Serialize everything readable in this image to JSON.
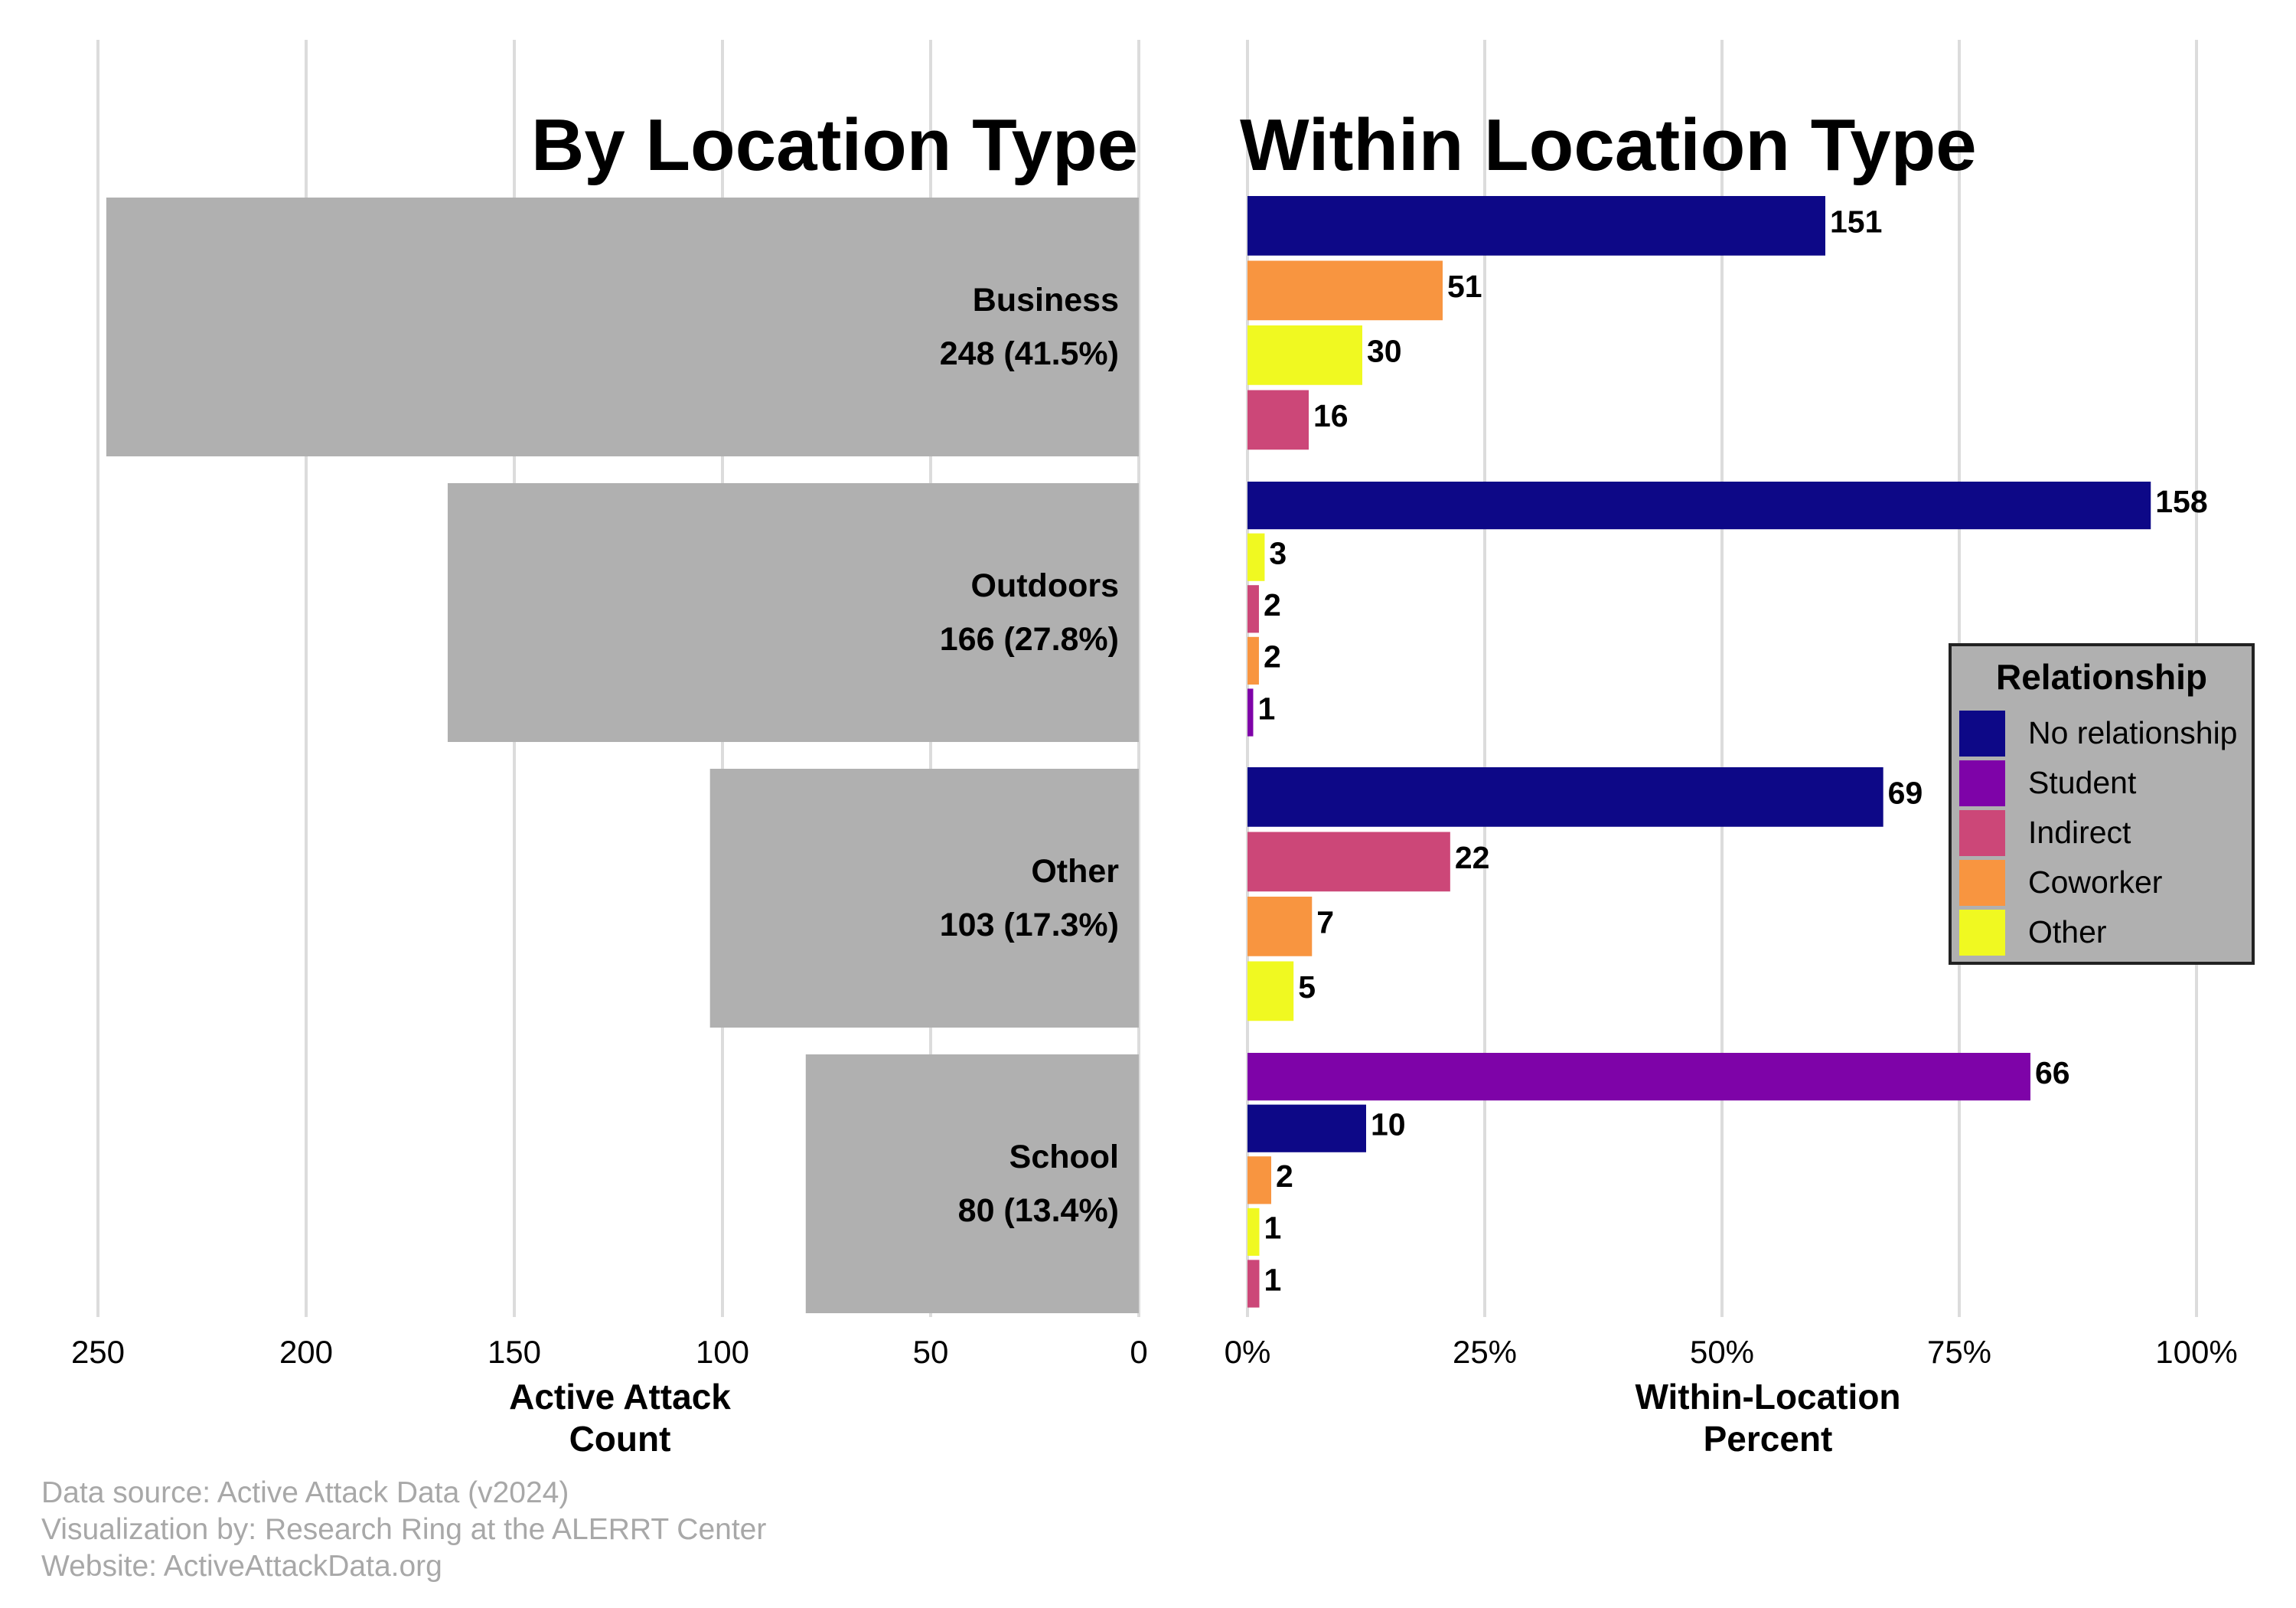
{
  "chart_data": [
    {
      "type": "bar",
      "orientation": "horizontal",
      "title": "By Location Type",
      "xlabel": "Active Attack Count",
      "xlim": [
        250,
        0
      ],
      "x_ticks": [
        250,
        200,
        150,
        100,
        50,
        0
      ],
      "grid": true,
      "bar_color": "#b0b0b0",
      "categories": [
        {
          "name": "Business",
          "count": 248,
          "label": "248 (41.5%)"
        },
        {
          "name": "Outdoors",
          "count": 166,
          "label": "166 (27.8%)"
        },
        {
          "name": "Other",
          "count": 103,
          "label": "103 (17.3%)"
        },
        {
          "name": "School",
          "count": 80,
          "label": "80 (13.4%)"
        }
      ]
    },
    {
      "type": "bar",
      "orientation": "horizontal",
      "title": "Within Location Type",
      "xlabel": "Within-Location Percent",
      "xlim": [
        0,
        100
      ],
      "x_ticks": [
        "0%",
        "25%",
        "50%",
        "75%",
        "100%"
      ],
      "x_tick_values": [
        0,
        25,
        50,
        75,
        100
      ],
      "grid": true,
      "groups": [
        {
          "location": "Business",
          "total": 248,
          "bars": [
            {
              "relationship": "No relationship",
              "count": 151
            },
            {
              "relationship": "Coworker",
              "count": 51
            },
            {
              "relationship": "Other",
              "count": 30
            },
            {
              "relationship": "Indirect",
              "count": 16
            }
          ]
        },
        {
          "location": "Outdoors",
          "total": 166,
          "bars": [
            {
              "relationship": "No relationship",
              "count": 158
            },
            {
              "relationship": "Other",
              "count": 3
            },
            {
              "relationship": "Indirect",
              "count": 2
            },
            {
              "relationship": "Coworker",
              "count": 2
            },
            {
              "relationship": "Student",
              "count": 1
            }
          ]
        },
        {
          "location": "Other",
          "total": 103,
          "bars": [
            {
              "relationship": "No relationship",
              "count": 69
            },
            {
              "relationship": "Indirect",
              "count": 22
            },
            {
              "relationship": "Coworker",
              "count": 7
            },
            {
              "relationship": "Other",
              "count": 5
            }
          ]
        },
        {
          "location": "School",
          "total": 80,
          "bars": [
            {
              "relationship": "Student",
              "count": 66
            },
            {
              "relationship": "No relationship",
              "count": 10
            },
            {
              "relationship": "Coworker",
              "count": 2
            },
            {
              "relationship": "Other",
              "count": 1
            },
            {
              "relationship": "Indirect",
              "count": 1
            }
          ]
        }
      ],
      "legend": {
        "title": "Relationship",
        "placement": "right",
        "items": [
          {
            "name": "No relationship",
            "color": "#0d0887"
          },
          {
            "name": "Student",
            "color": "#7e03a8"
          },
          {
            "name": "Indirect",
            "color": "#cc4778"
          },
          {
            "name": "Coworker",
            "color": "#f89540"
          },
          {
            "name": "Other",
            "color": "#f0f921"
          }
        ]
      }
    }
  ],
  "caption": {
    "line1": "Data source: Active Attack Data (v2024)",
    "line2": "Visualization by: Research Ring at the ALERRT Center",
    "line3": "Website: ActiveAttackData.org"
  }
}
